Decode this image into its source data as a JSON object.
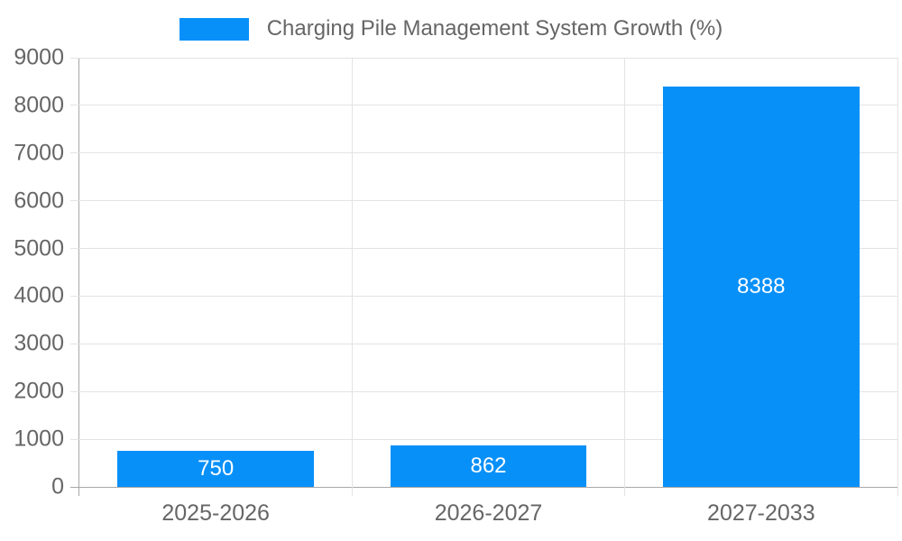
{
  "chart_data": {
    "type": "bar",
    "title": "",
    "series_name": "Charging Pile Management System Growth (%)",
    "categories": [
      "2025-2026",
      "2026-2027",
      "2027-2033"
    ],
    "values": [
      750,
      862,
      8388
    ],
    "value_labels": [
      "750",
      "862",
      "8388"
    ],
    "xlabel": "",
    "ylabel": "",
    "ylim": [
      0,
      9000
    ],
    "yticks": [
      0,
      1000,
      2000,
      3000,
      4000,
      5000,
      6000,
      7000,
      8000,
      9000
    ],
    "grid": true,
    "legend_position": "top-center",
    "colors": {
      "bar": "#0890f9",
      "value_label": "#ffffff",
      "axis_text": "#666666",
      "grid_line": "#e3e3e3",
      "axis_line": "#a8a8a8",
      "background": "#ffffff"
    }
  }
}
